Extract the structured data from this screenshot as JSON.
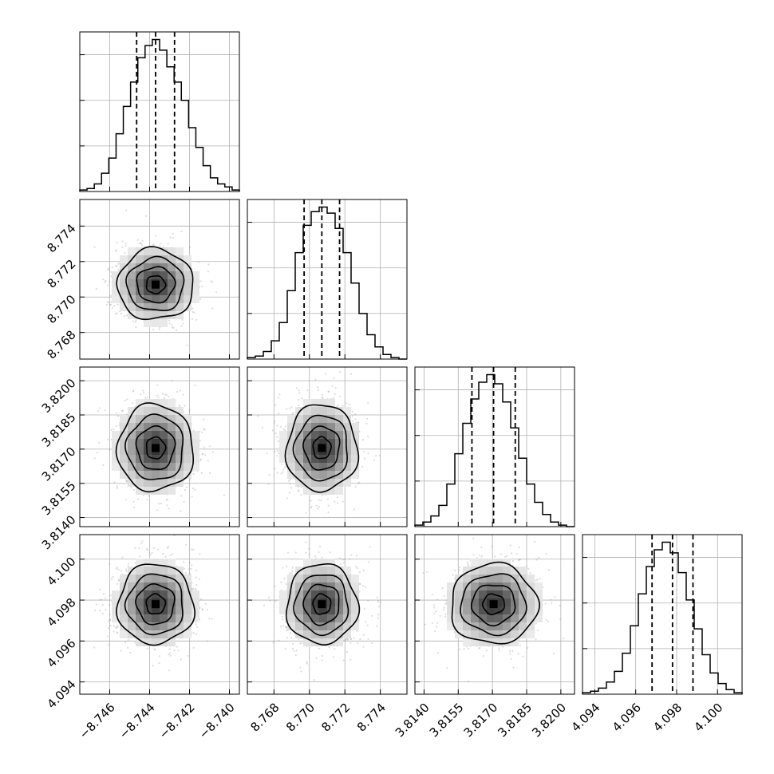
{
  "chart_data": {
    "type": "corner",
    "title": "",
    "parameters": [
      {
        "index": 0,
        "range": [
          -8.7475,
          -8.7395
        ],
        "mean": -8.7437,
        "sigma": 0.00095,
        "quantiles": [
          -8.74465,
          -8.7437,
          -8.74275
        ],
        "ticks": [
          -8.746,
          -8.744,
          -8.742,
          -8.74
        ],
        "tick_labels": [
          "−8.746",
          "−8.744",
          "−8.742",
          "−8.740"
        ],
        "hist": [
          0.01,
          0.02,
          0.05,
          0.12,
          0.22,
          0.38,
          0.56,
          0.72,
          0.88,
          0.96,
          1.0,
          0.93,
          0.82,
          0.72,
          0.6,
          0.42,
          0.29,
          0.17,
          0.09,
          0.05,
          0.03,
          0.01
        ]
      },
      {
        "index": 1,
        "range": [
          8.7665,
          8.7755
        ],
        "mean": 8.7707,
        "sigma": 0.001,
        "quantiles": [
          8.7697,
          8.7707,
          8.7717
        ],
        "ticks": [
          8.768,
          8.77,
          8.772,
          8.774
        ],
        "tick_labels": [
          "8.768",
          "8.770",
          "8.772",
          "8.774"
        ],
        "hist": [
          0.01,
          0.02,
          0.05,
          0.12,
          0.24,
          0.45,
          0.7,
          0.88,
          0.97,
          1.0,
          0.96,
          0.86,
          0.7,
          0.5,
          0.3,
          0.16,
          0.08,
          0.03,
          0.01,
          0.0
        ]
      },
      {
        "index": 2,
        "range": [
          3.8136,
          3.8206
        ],
        "mean": 3.81705,
        "sigma": 0.00095,
        "quantiles": [
          3.8161,
          3.81705,
          3.818
        ],
        "ticks": [
          3.814,
          3.8155,
          3.817,
          3.8185,
          3.82
        ],
        "tick_labels": [
          "3.8140",
          "3.8155",
          "3.8170",
          "3.8185",
          "3.8200"
        ],
        "hist": [
          0.01,
          0.03,
          0.07,
          0.14,
          0.28,
          0.48,
          0.68,
          0.84,
          0.95,
          1.0,
          0.94,
          0.82,
          0.65,
          0.45,
          0.28,
          0.16,
          0.08,
          0.03,
          0.01,
          0.0
        ]
      },
      {
        "index": 3,
        "range": [
          4.0934,
          4.1012
        ],
        "mean": 4.0978,
        "sigma": 0.00098,
        "quantiles": [
          4.0968,
          4.0978,
          4.0988
        ],
        "ticks": [
          4.094,
          4.096,
          4.098,
          4.1
        ],
        "tick_labels": [
          "4.094",
          "4.096",
          "4.098",
          "4.100"
        ],
        "hist": [
          0.01,
          0.02,
          0.04,
          0.08,
          0.15,
          0.27,
          0.45,
          0.66,
          0.84,
          0.95,
          1.0,
          0.93,
          0.8,
          0.62,
          0.43,
          0.26,
          0.14,
          0.07,
          0.03,
          0.01
        ]
      }
    ],
    "contour_levels": [
      0.5,
      1.0,
      1.5,
      2.0
    ],
    "grid": true,
    "show_samples": true
  }
}
